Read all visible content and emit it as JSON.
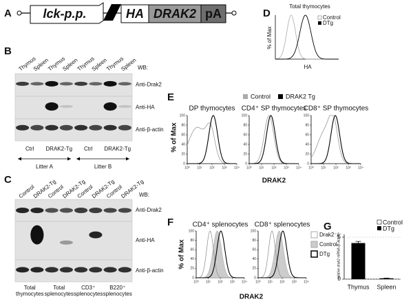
{
  "panels": {
    "A": {
      "label": "A",
      "construct": [
        "lck-p.p.",
        "HA",
        "DRAK2",
        "pA"
      ]
    },
    "B": {
      "label": "B",
      "lanes": [
        "Thymus",
        "Spleen",
        "Thymus",
        "Spleen",
        "Thymus",
        "Spleen",
        "Thymus",
        "Spleen"
      ],
      "wb": "WB:",
      "blots": [
        "Anti-Drak2",
        "Anti-HA",
        "Anti-β-actin"
      ],
      "groups": [
        "Ctrl",
        "DRAK2-Tg",
        "Ctrl",
        "DRAK2-Tg"
      ],
      "litters": [
        "Litter A",
        "Litter B"
      ]
    },
    "C": {
      "label": "C",
      "lanes": [
        "Control",
        "DRAK2-Tg",
        "Control",
        "DRAK2-Tg",
        "Control",
        "DRAK2-Tg",
        "Control",
        "DRAK2-Tg"
      ],
      "wb": "WB:",
      "blots": [
        "Anti-Drak2",
        "Anti-HA",
        "Anti-β-actin"
      ],
      "groups": [
        "Total thymocytes",
        "Total splenocytes",
        "CD3⁺ splenocytes",
        "B220⁺ splenocytes"
      ]
    },
    "D": {
      "label": "D",
      "title": "Total thymocytes",
      "ylabel": "% of Max",
      "xlabel": "HA",
      "legend": [
        "Control",
        "DTg"
      ]
    },
    "E": {
      "label": "E",
      "legend": [
        "Control",
        "DRAK2 Tg"
      ],
      "titles": [
        "DP thymocytes",
        "CD4⁺ SP thymocytes",
        "CD8⁺ SP thymocytes"
      ],
      "ylabel": "% of Max",
      "xlabel": "DRAK2",
      "ylim": [
        0,
        100
      ],
      "yticks": [
        0,
        20,
        40,
        60,
        80,
        100
      ],
      "xscale": "log",
      "xlim": [
        1,
        10000
      ],
      "xticks": [
        {
          "value": 1,
          "label": "10⁰"
        },
        {
          "value": 10,
          "label": "10¹"
        },
        {
          "value": 100,
          "label": "10²"
        },
        {
          "value": 1000,
          "label": "10³"
        },
        {
          "value": 10000,
          "label": "10⁴"
        }
      ]
    },
    "F": {
      "label": "F",
      "titles": [
        "CD4⁺ splenocytes",
        "CD8⁺ splenocytes"
      ],
      "legend": [
        "Drak2⁻/⁻",
        "Control",
        "DTg"
      ],
      "ylabel": "% of Max",
      "xlabel": "DRAK2",
      "ylim": [
        0,
        100
      ],
      "yticks": [
        0,
        20,
        40,
        60,
        80,
        100
      ],
      "xscale": "log",
      "xlim": [
        1,
        10000
      ],
      "xticks": [
        {
          "value": 1,
          "label": "10⁰"
        },
        {
          "value": 10,
          "label": "10¹"
        },
        {
          "value": 100,
          "label": "10²"
        },
        {
          "value": 1000,
          "label": "10³"
        },
        {
          "value": 10000,
          "label": "10⁴"
        }
      ]
    },
    "G": {
      "label": "G",
      "ylabel": "relative drak2 mRNA /β-Actin",
      "legend": [
        "Control",
        "DTg"
      ],
      "categories": [
        "Thymus",
        "Spleen"
      ],
      "values": [
        4.3,
        0.1
      ],
      "errors": [
        0.2,
        0.02
      ],
      "ylim": [
        0,
        5
      ],
      "yticks": [
        0,
        5
      ]
    }
  }
}
